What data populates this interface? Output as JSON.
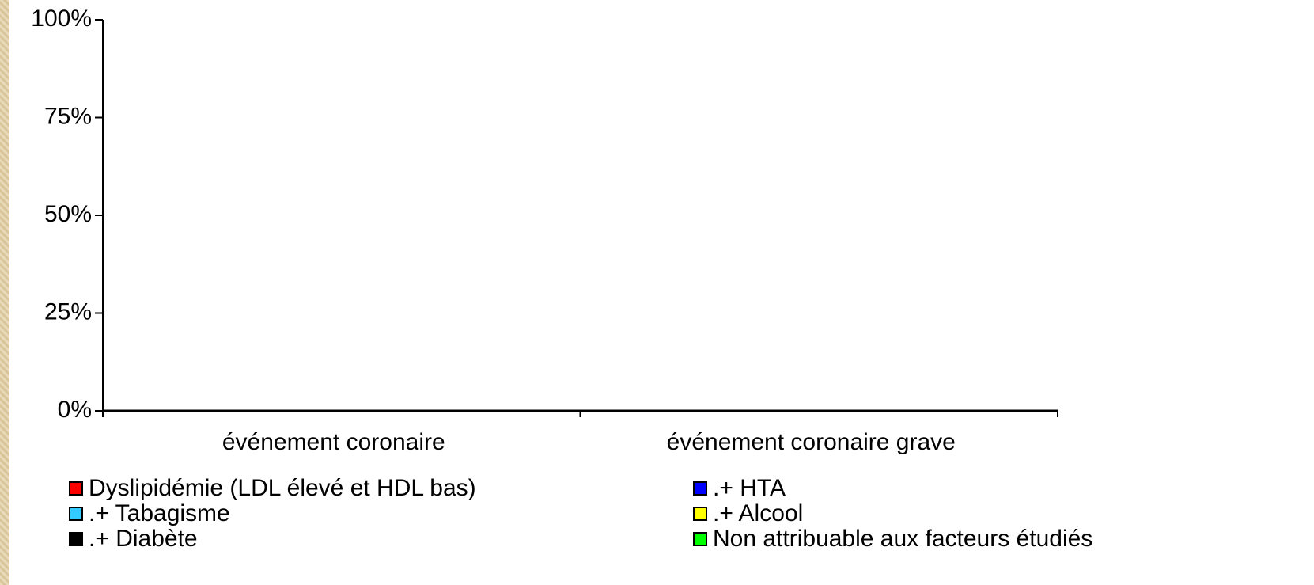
{
  "chart_data": {
    "type": "bar",
    "stacked": true,
    "categories": [
      "événement coronaire",
      "événement coronaire grave"
    ],
    "series": [
      {
        "name": "Dyslipidémie (LDL élevé et HDL bas)",
        "color": "#ff0000"
      },
      {
        "name": ".+ HTA",
        "color": "#0000ff"
      },
      {
        "name": ".+ Tabagisme",
        "color": "#33ccff"
      },
      {
        "name": ".+ Alcool",
        "color": "#ffff00"
      },
      {
        "name": ".+ Diabète",
        "color": "#000000"
      },
      {
        "name": "Non attribuable aux facteurs étudiés",
        "color": "#00ff00"
      }
    ],
    "ylim": [
      0,
      100
    ],
    "yticks": [
      {
        "value": 0,
        "label": "0%"
      },
      {
        "value": 25,
        "label": "25%"
      },
      {
        "value": 50,
        "label": "50%"
      },
      {
        "value": 75,
        "label": "75%"
      },
      {
        "value": 100,
        "label": "100%"
      }
    ],
    "grid": false
  }
}
